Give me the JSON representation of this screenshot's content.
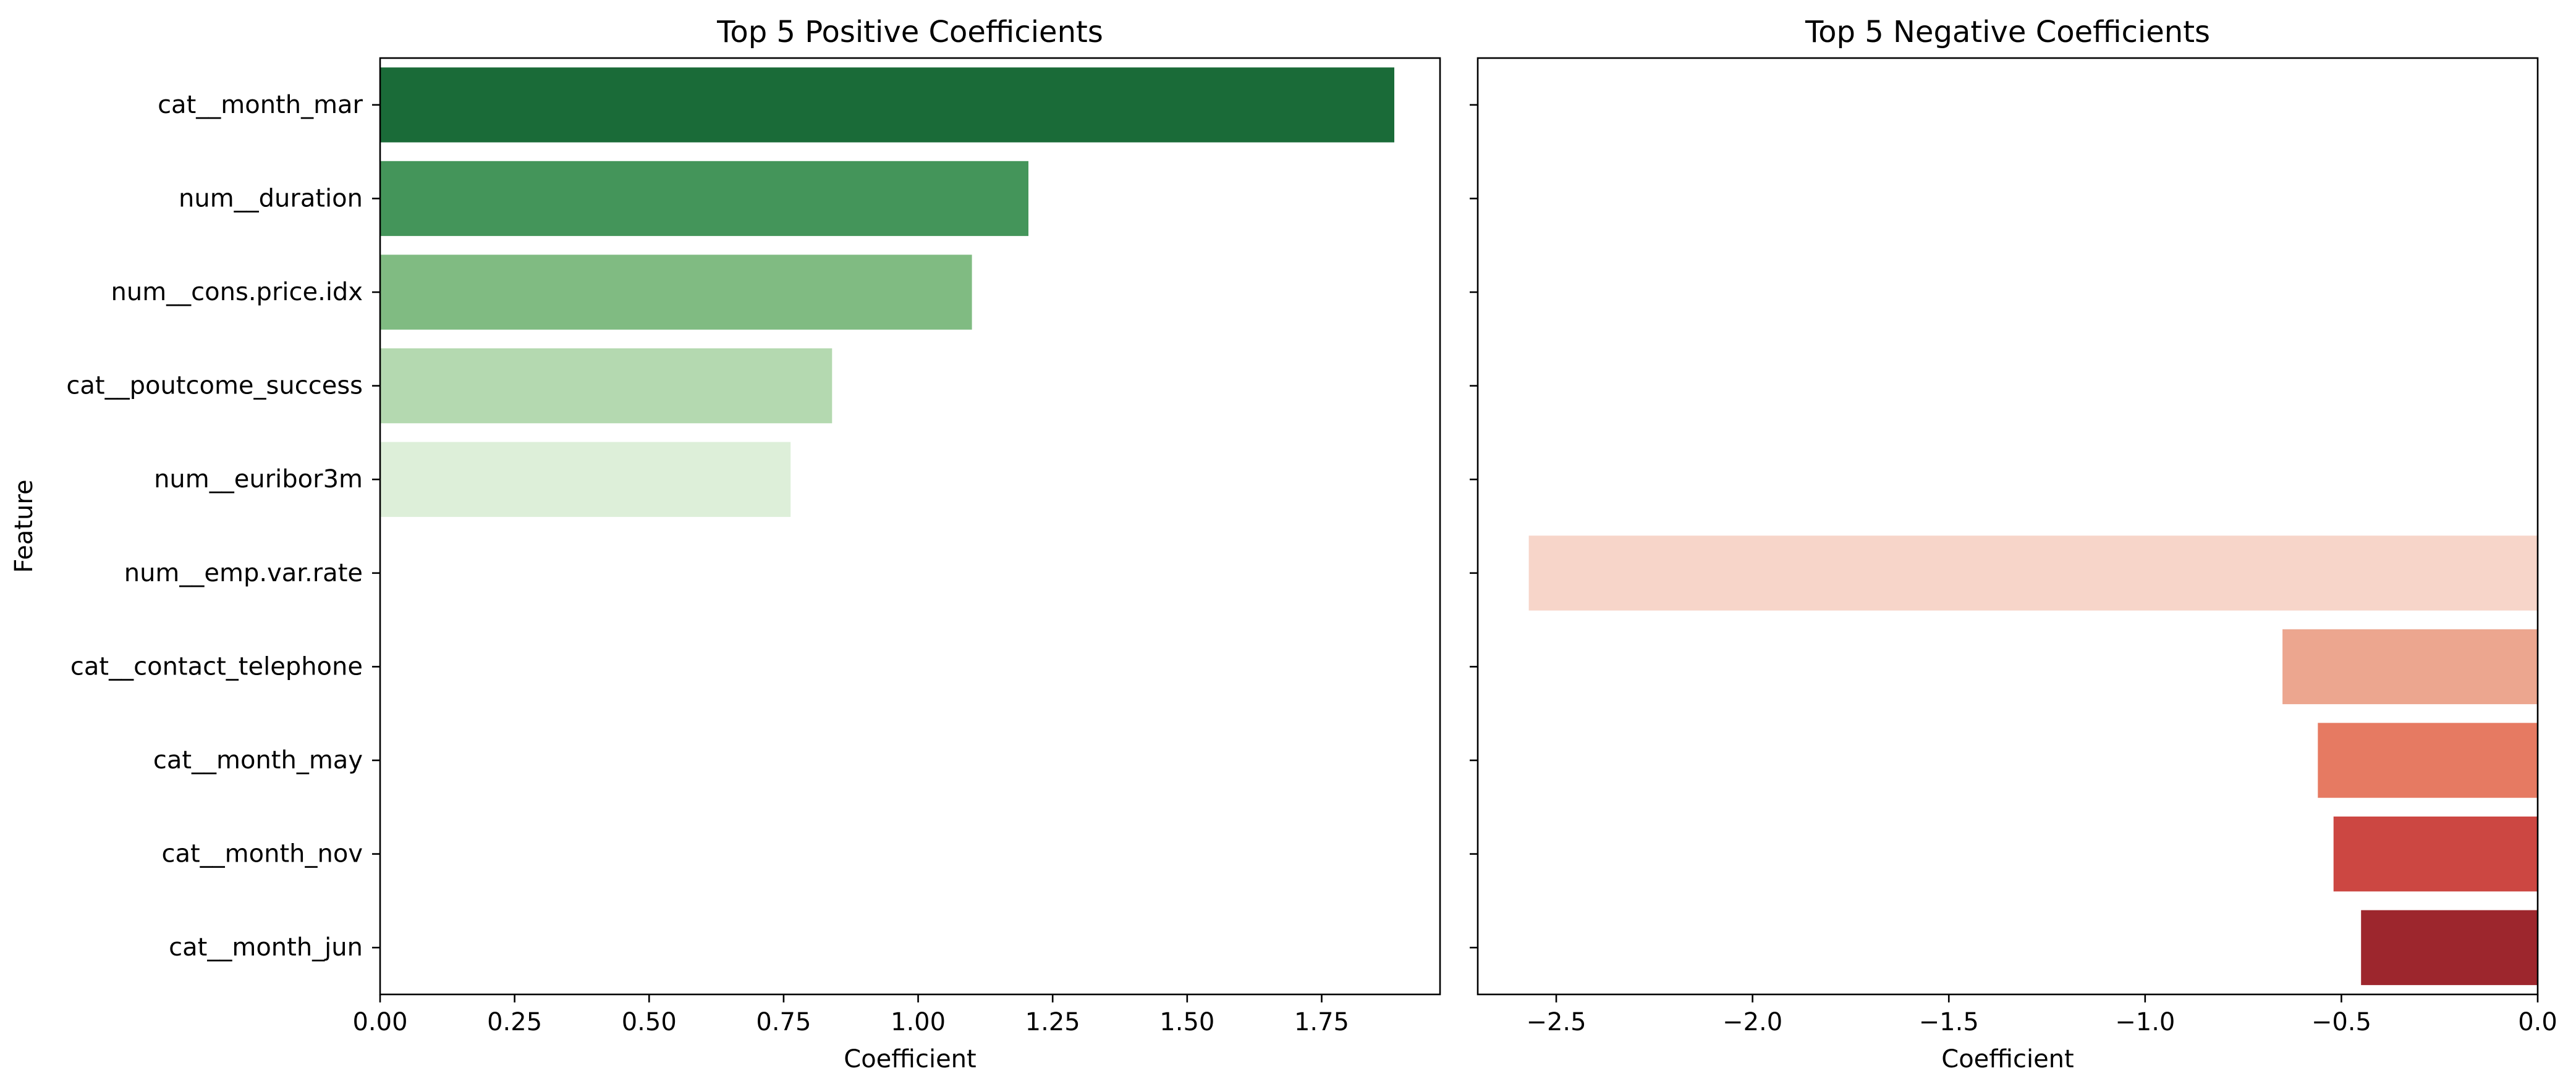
{
  "chart_data": [
    {
      "type": "bar",
      "orientation": "horizontal",
      "title": "Top 5 Positive Coefficients",
      "xlabel": "Coefficient",
      "ylabel": "Feature",
      "xlim": [
        0,
        1.97
      ],
      "xticks": [
        "0.00",
        "0.25",
        "0.50",
        "0.75",
        "1.00",
        "1.25",
        "1.50",
        "1.75"
      ],
      "xtick_values": [
        0,
        0.25,
        0.5,
        0.75,
        1.0,
        1.25,
        1.5,
        1.75
      ],
      "categories": [
        "cat__month_mar",
        "num__duration",
        "num__cons.price.idx",
        "cat__poutcome_success",
        "num__euribor3m",
        "num__emp.var.rate",
        "cat__contact_telephone",
        "cat__month_may",
        "cat__month_nov",
        "cat__month_jun"
      ],
      "values": [
        1.885,
        1.205,
        1.1,
        0.84,
        0.763,
        null,
        null,
        null,
        null,
        null
      ],
      "colors": [
        "#1a6b38",
        "#44955a",
        "#80bb82",
        "#b4d9b0",
        "#ddefd9",
        null,
        null,
        null,
        null,
        null
      ],
      "grid": false
    },
    {
      "type": "bar",
      "orientation": "horizontal",
      "title": "Top 5 Negative Coefficients",
      "xlabel": "Coefficient",
      "ylabel": "",
      "xlim": [
        -2.7,
        0
      ],
      "xticks": [
        "−2.5",
        "−2.0",
        "−1.5",
        "−1.0",
        "−0.5",
        "0.0"
      ],
      "xtick_values": [
        -2.5,
        -2.0,
        -1.5,
        -1.0,
        -0.5,
        0.0
      ],
      "categories": [
        "cat__month_mar",
        "num__duration",
        "num__cons.price.idx",
        "cat__poutcome_success",
        "num__euribor3m",
        "num__emp.var.rate",
        "cat__contact_telephone",
        "cat__month_may",
        "cat__month_nov",
        "cat__month_jun"
      ],
      "values": [
        null,
        null,
        null,
        null,
        null,
        -2.57,
        -0.65,
        -0.56,
        -0.52,
        -0.45
      ],
      "colors": [
        null,
        null,
        null,
        null,
        null,
        "#f7d5c9",
        "#eca68f",
        "#e67a62",
        "#cc4742",
        "#9d262d"
      ],
      "grid": false,
      "shared_y": true
    }
  ]
}
